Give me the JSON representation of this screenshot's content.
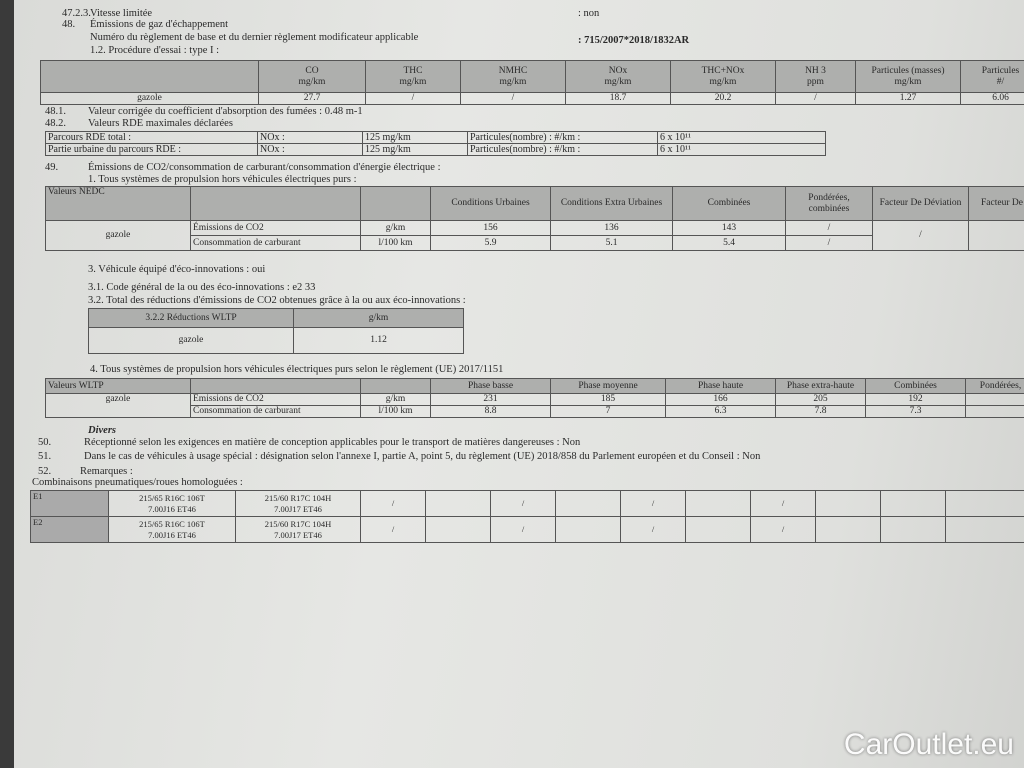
{
  "lines": {
    "l4723": "47.2.3.",
    "vitesse": "Vitesse limitée",
    "vitesse_val": ": non",
    "n48": "48.",
    "emissions": "Émissions de gaz d'échappement",
    "reglement": "Numéro du règlement de base et du dernier règlement modificateur applicable",
    "reglement_val": ": 715/2007*2018/1832AR",
    "procedure": "1.2. Procédure d'essai : type I :",
    "n481": "48.1.",
    "absorption": "Valeur corrigée du coefficient d'absorption des fumées : 0.48 m-1",
    "n482": "48.2.",
    "rde": "Valeurs RDE maximales déclarées",
    "n49": "49.",
    "co2": "Émissions de CO2/consommation de carburant/consommation d'énergie électrique :",
    "tous": "1. Tous systèmes de propulsion hors véhicules électriques purs :",
    "eco": "3. Véhicule équipé d'éco-innovations : oui",
    "eco_code": "3.1. Code général de la ou des éco-innovations : e2 33",
    "eco_total": "3.2. Total des réductions d'émissions de CO2 obtenues grâce à la ou aux éco-innovations :",
    "wltp_title": "4. Tous systèmes de propulsion hors véhicules électriques purs selon le règlement (UE) 2017/1151",
    "divers": "Divers",
    "n50": "50.",
    "l50": "Réceptionné selon les exigences en matière de conception applicables pour le transport de matières dangereuses : Non",
    "n51": "51.",
    "l51": "Dans le cas de véhicules à usage spécial : désignation selon l'annexe I, partie A, point 5, du règlement (UE) 2018/858 du Parlement européen et du Conseil : Non",
    "n52": "52.",
    "l52": "Remarques :",
    "pneus": "Combinaisons pneumatiques/roues homologuées :"
  },
  "emissions_table": {
    "headers": [
      [
        "CO",
        "mg/km"
      ],
      [
        "THC",
        "mg/km"
      ],
      [
        "NMHC",
        "mg/km"
      ],
      [
        "NOx",
        "mg/km"
      ],
      [
        "THC+NOx",
        "mg/km"
      ],
      [
        "NH 3",
        "ppm"
      ],
      [
        "Particules (masses)",
        "mg/km"
      ],
      [
        "Particules",
        "#/"
      ]
    ],
    "row": [
      "gazole",
      "27.7",
      "/",
      "/",
      "18.7",
      "20.2",
      "/",
      "1.27",
      "6.06"
    ]
  },
  "rde_table": [
    [
      "Parcours RDE total :",
      "NOx :",
      "125 mg/km",
      "Particules(nombre) : #/km :",
      "6 x 10¹¹"
    ],
    [
      "Partie urbaine du parcours RDE    :",
      "NOx :",
      "125 mg/km",
      "Particules(nombre) : #/km :",
      "6 x 10¹¹"
    ]
  ],
  "nedc_table": {
    "headers": [
      "Valeurs NEDC",
      "",
      "",
      "Conditions Urbaines",
      "Conditions Extra Urbaines",
      "Combinées",
      "Pondérées, combinées",
      "Facteur De Déviation",
      "Facteur De"
    ],
    "fuel": "gazole",
    "rows": [
      [
        "Émissions de CO2",
        "g/km",
        "156",
        "136",
        "143",
        "/"
      ],
      [
        "Consommation de carburant",
        "l/100 km",
        "5.9",
        "5.1",
        "5.4",
        "/"
      ]
    ],
    "deviation": "/"
  },
  "reductions_table": {
    "headers": [
      "3.2.2 Réductions WLTP",
      "g/km"
    ],
    "row": [
      "gazole",
      "1.12"
    ]
  },
  "wltp_table": {
    "headers": [
      "Valeurs WLTP",
      "",
      "",
      "Phase basse",
      "Phase moyenne",
      "Phase haute",
      "Phase extra-haute",
      "Combinées",
      "Pondérées,"
    ],
    "fuel": "gazole",
    "rows": [
      [
        "Émissions de CO2",
        "g/km",
        "231",
        "185",
        "166",
        "205",
        "192",
        ""
      ],
      [
        "Consommation de carburant",
        "l/100 km",
        "8.8",
        "7",
        "6.3",
        "7.8",
        "7.3",
        ""
      ]
    ]
  },
  "tires_table": [
    [
      "E1",
      "215/65 R16C 106T",
      "7.00J16 ET46",
      "215/60 R17C 104H",
      "7.00J17 ET46"
    ],
    [
      "E2",
      "215/65 R16C 106T",
      "7.00J16 ET46",
      "215/60 R17C 104H",
      "7.00J17 ET46"
    ]
  ],
  "watermark": "CarOutlet.eu"
}
